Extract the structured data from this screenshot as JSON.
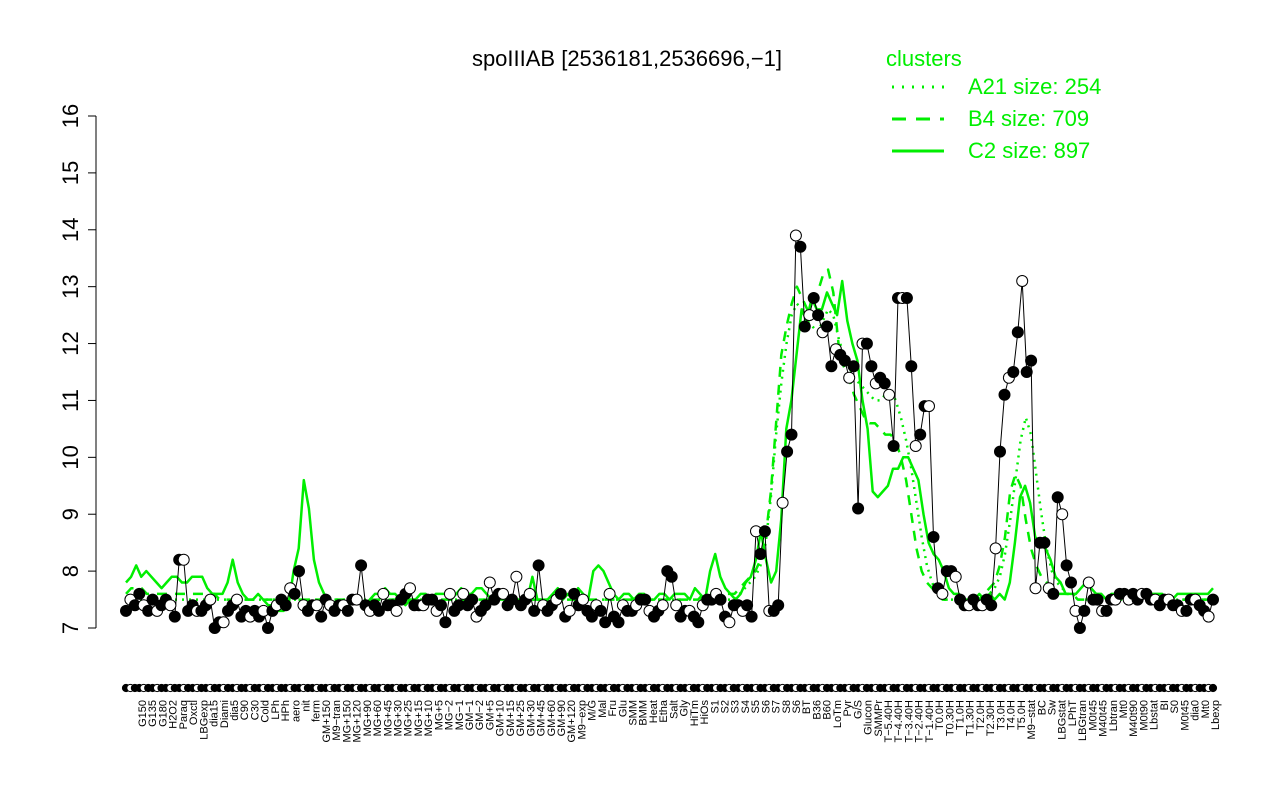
{
  "chart_data": {
    "type": "line",
    "title": "spoIIIAB [2536181,2536696,−1]",
    "xlabel": "",
    "ylabel": "",
    "ylim": [
      7,
      16
    ],
    "yticks": [
      7,
      8,
      9,
      10,
      11,
      12,
      13,
      14,
      15,
      16
    ],
    "grid": false,
    "legend_position": "top-right",
    "legend_title": "clusters",
    "legend": [
      {
        "label": "A21 size: 254",
        "style": "dotted",
        "color": "#00ee00"
      },
      {
        "label": "B4 size: 709",
        "style": "dashed",
        "color": "#00ee00"
      },
      {
        "label": "C2 size: 897",
        "style": "solid",
        "color": "#00ee00"
      }
    ],
    "x_tick_labels_row1": [
      "G150",
      "G135",
      "G180",
      "H2O2",
      "Paraq",
      "Oxctl",
      "LBGexp",
      "dia15",
      "Diami",
      "dia5",
      "C90",
      "C30",
      "Cold",
      "LPh",
      "HPh",
      "aero",
      "nit",
      "ferm",
      "GM+150",
      "M9−tran",
      "MG+150",
      "MG+120",
      "MG+90",
      "MG+60",
      "MG+45",
      "MG+30",
      "MG+25",
      "MG+15",
      "MG+10",
      "MG+5",
      "MG−2",
      "MG−1",
      "GM−1",
      "GM−2",
      "GM+5",
      "GM+10",
      "GM+15",
      "GM+25",
      "GM+30",
      "GM+45",
      "GM+60",
      "GM+90",
      "GM+120",
      "M9−exp",
      "M/G",
      "Mal",
      "Fru",
      "Glu",
      "SMM",
      "BMM",
      "Heat",
      "Etha",
      "Salt",
      "Gly",
      "HiTm",
      "HiOs",
      "S1",
      "S2",
      "S3",
      "S4",
      "S5",
      "S6",
      "S7",
      "S8",
      "S6",
      "BT",
      "B36",
      "B60",
      "LoTm",
      "Pyr",
      "G/S",
      "Glucon",
      "SMMPr",
      "T−5.40H",
      "T−4.40H",
      "T−3.40H",
      "T−2.40H",
      "T−1.40H",
      "T0.0H",
      "T0.30H",
      "T1.0H",
      "T1.30H",
      "T2.0H",
      "T2.30H",
      "T3.0H",
      "T4.0H",
      "T5.0H",
      "M9−stat",
      "BC",
      "Sw",
      "LBGstat",
      "LPhT",
      "LBGtran",
      "M0t45",
      "M40t45",
      "Lbtran",
      "Mt0",
      "M40t90",
      "M0t90",
      "Lbstat",
      "BI",
      "S0",
      "M0t45",
      "dia0",
      "Mt0",
      "Lbexp"
    ],
    "series": [
      {
        "name": "",
        "style": "solid-black-points",
        "values": [
          7.3,
          7.5,
          7.4,
          7.6,
          7.4,
          7.3,
          7.5,
          7.3,
          7.4,
          7.5,
          7.4,
          7.2,
          8.2,
          8.2,
          7.3,
          7.4,
          7.3,
          7.3,
          7.4,
          7.5,
          7.0,
          7.1,
          7.1,
          7.3,
          7.4,
          7.5,
          7.2,
          7.3,
          7.2,
          7.3,
          7.2,
          7.3,
          7.0,
          7.3,
          7.4,
          7.5,
          7.4,
          7.7,
          7.6,
          8.0,
          7.4,
          7.3,
          7.4,
          7.4,
          7.2,
          7.5,
          7.4,
          7.3,
          7.4,
          7.4,
          7.3,
          7.5,
          7.5,
          8.1,
          7.4,
          7.3,
          7.4,
          7.3,
          7.6,
          7.4,
          7.4,
          7.3,
          7.5,
          7.6,
          7.7,
          7.4,
          7.4,
          7.4,
          7.5,
          7.5,
          7.3,
          7.4,
          7.1,
          7.6,
          7.3,
          7.4,
          7.6,
          7.4,
          7.5,
          7.2,
          7.3,
          7.4,
          7.8,
          7.5,
          7.6,
          7.6,
          7.4,
          7.5,
          7.9,
          7.4,
          7.5,
          7.6,
          7.3,
          8.1,
          7.4,
          7.3,
          7.4,
          7.5,
          7.6,
          7.2,
          7.3,
          7.6,
          7.4,
          7.5,
          7.3,
          7.2,
          7.4,
          7.3,
          7.1,
          7.6,
          7.2,
          7.1,
          7.4,
          7.3,
          7.3,
          7.4,
          7.5,
          7.5,
          7.3,
          7.2,
          7.3,
          7.4,
          8.0,
          7.9,
          7.4,
          7.2,
          7.3,
          7.3,
          7.2,
          7.1,
          7.4,
          7.5,
          7.5,
          7.6,
          7.5,
          7.2,
          7.1,
          7.4,
          7.4,
          7.3,
          7.4,
          7.2,
          8.7,
          8.3,
          8.7,
          7.3,
          7.3,
          7.4,
          9.2,
          10.1,
          10.4,
          13.9,
          13.7,
          12.3,
          12.5,
          12.8,
          12.5,
          12.2,
          12.3,
          11.6,
          11.9,
          11.8,
          11.7,
          11.4,
          11.6,
          9.1,
          12.0,
          12.0,
          11.6,
          11.3,
          11.4,
          11.3,
          11.1,
          10.2,
          12.8,
          12.8,
          12.8,
          11.6,
          10.2,
          10.4,
          10.9,
          10.9,
          8.6,
          7.7,
          7.6,
          8.0,
          8.0,
          7.9,
          7.5,
          7.4,
          7.4,
          7.5,
          7.4,
          7.4,
          7.5,
          7.4,
          8.4,
          10.1,
          11.1,
          11.4,
          11.5,
          12.2,
          13.1,
          11.5,
          11.7,
          7.7,
          8.5,
          8.5,
          7.7,
          7.6,
          9.3,
          9.0,
          8.1,
          7.8,
          7.3,
          7.0,
          7.3,
          7.8,
          7.5,
          7.5,
          7.3,
          7.3,
          7.5,
          7.5,
          7.6,
          7.6,
          7.5,
          7.6,
          7.5,
          7.6,
          7.6,
          7.5,
          7.5,
          7.4,
          7.5,
          7.5,
          7.4,
          7.4,
          7.3,
          7.3,
          7.5,
          7.5,
          7.4,
          7.3,
          7.2,
          7.5
        ]
      },
      {
        "name": "",
        "style": "solid-green",
        "values": [
          7.8,
          7.9,
          8.1,
          7.9,
          8.0,
          7.9,
          7.8,
          7.7,
          7.8,
          7.9,
          7.9,
          7.8,
          7.8,
          7.9,
          7.9,
          7.9,
          7.7,
          7.6,
          7.6,
          7.6,
          7.8,
          8.2,
          7.8,
          7.6,
          7.5,
          7.5,
          7.6,
          7.5,
          7.4,
          7.4,
          7.3,
          7.3,
          7.4,
          8.0,
          8.4,
          9.6,
          9.1,
          8.2,
          7.8,
          7.6,
          7.5,
          7.4,
          7.4,
          7.4,
          7.4,
          7.5,
          7.5,
          7.4,
          7.5,
          7.6,
          7.6,
          7.7,
          7.6,
          7.6,
          7.5,
          7.4,
          7.5,
          7.5,
          7.6,
          7.6,
          7.5,
          7.6,
          7.6,
          7.6,
          7.5,
          7.6,
          7.7,
          7.6,
          7.6,
          7.7,
          7.7,
          7.6,
          7.5,
          7.6,
          7.6,
          7.5,
          7.5,
          7.5,
          7.4,
          7.5,
          7.9,
          7.5,
          7.5,
          7.5,
          7.6,
          7.7,
          7.5,
          7.6,
          7.5,
          7.7,
          7.6,
          7.5,
          8.0,
          8.1,
          8.0,
          7.8,
          7.6,
          7.5,
          7.6,
          7.6,
          7.5,
          7.6,
          7.6,
          7.5,
          7.5,
          7.6,
          7.6,
          7.5,
          7.6,
          7.6,
          7.6,
          7.5,
          7.7,
          7.6,
          7.5,
          8.0,
          8.3,
          7.9,
          7.7,
          7.6,
          7.5,
          7.6,
          7.8,
          7.9,
          8.2,
          8.7,
          8.2,
          7.8,
          8.0,
          8.9,
          10.5,
          11.0,
          11.8,
          12.6,
          12.4,
          12.8,
          12.6,
          12.6,
          12.9,
          12.7,
          12.5,
          13.1,
          12.4,
          12.0,
          11.7,
          11.0,
          10.5,
          9.4,
          9.3,
          9.4,
          9.5,
          9.8,
          9.8,
          10.0,
          10.0,
          9.8,
          9.6,
          9.0,
          8.5,
          8.3,
          8.2,
          8.0,
          7.7,
          7.6,
          7.6,
          7.5,
          7.5,
          7.5,
          7.6,
          7.5,
          7.6,
          7.5,
          7.6,
          7.5,
          7.8,
          8.5,
          9.3,
          9.5,
          9.2,
          8.6,
          8.5,
          8.4,
          8.2,
          7.9,
          7.8,
          7.6,
          7.6,
          7.6,
          7.7,
          7.8,
          7.7,
          7.6,
          7.6,
          7.5,
          7.6,
          7.6,
          7.6,
          7.5,
          7.5,
          7.6,
          7.6,
          7.6,
          7.6,
          7.6,
          7.6,
          7.5,
          7.5,
          7.6,
          7.6,
          7.6,
          7.6,
          7.6,
          7.6,
          7.6,
          7.7
        ]
      },
      {
        "name": "",
        "style": "dashed-green",
        "values": [
          7.6,
          7.7,
          7.7,
          7.7,
          7.6,
          7.6,
          7.6,
          7.6,
          7.6,
          7.6,
          7.6,
          7.6,
          7.6,
          7.6,
          7.6,
          7.6,
          7.6,
          7.6,
          7.5,
          7.5,
          7.5,
          7.5,
          7.5,
          7.5,
          7.5,
          7.5,
          7.5,
          7.5,
          7.5,
          7.5,
          7.5,
          7.5,
          7.5,
          7.5,
          7.5,
          7.5,
          7.5,
          7.5,
          7.5,
          7.5,
          7.5,
          7.5,
          7.5,
          7.5,
          7.5,
          7.5,
          7.5,
          7.5,
          7.5,
          7.5,
          7.5,
          7.5,
          7.5,
          7.5,
          7.5,
          7.5,
          7.5,
          7.5,
          7.5,
          7.5,
          7.5,
          7.5,
          7.5,
          7.5,
          7.5,
          7.5,
          7.5,
          7.5,
          7.5,
          7.5,
          7.5,
          7.5,
          7.5,
          7.5,
          7.5,
          7.5,
          7.5,
          7.5,
          7.5,
          7.5,
          7.5,
          7.5,
          7.5,
          7.5,
          7.5,
          7.5,
          7.5,
          7.5,
          7.5,
          7.5,
          7.5,
          7.5,
          7.5,
          7.5,
          7.5,
          7.5,
          7.5,
          7.5,
          7.5,
          7.5,
          7.5,
          7.5,
          7.5,
          7.5,
          7.5,
          7.5,
          7.5,
          7.5,
          7.5,
          7.5,
          7.5,
          7.6,
          7.6,
          7.6,
          7.6,
          7.6,
          7.6,
          7.6,
          7.7,
          7.8,
          7.9,
          8.0,
          8.2,
          8.6,
          9.4,
          10.6,
          11.8,
          12.3,
          12.7,
          13.0,
          12.8,
          12.6,
          12.7,
          12.9,
          13.2,
          13.3,
          12.9,
          12.0,
          11.6,
          11.4,
          11.1,
          10.9,
          10.7,
          10.6,
          10.6,
          10.5,
          10.4,
          10.4,
          10.3,
          10.0,
          9.6,
          9.0,
          8.4,
          8.0,
          7.8,
          7.7,
          7.6,
          7.5,
          7.5,
          7.5,
          7.5,
          7.5,
          7.5,
          7.5,
          7.5,
          7.6,
          7.7,
          7.8,
          8.1,
          8.6,
          9.4,
          9.7,
          9.5,
          8.9,
          8.4,
          8.1,
          7.9,
          7.8,
          7.7,
          7.6,
          7.6,
          7.6,
          7.6,
          7.5,
          7.5,
          7.5,
          7.5,
          7.5,
          7.5,
          7.5,
          7.5,
          7.5,
          7.5,
          7.5,
          7.5,
          7.5,
          7.5,
          7.5,
          7.5,
          7.5,
          7.5,
          7.5,
          7.5,
          7.5,
          7.5,
          7.5,
          7.5,
          7.5,
          7.5,
          7.5
        ]
      },
      {
        "name": "",
        "style": "dotted-green",
        "values": [
          7.5,
          7.5,
          7.5,
          7.5,
          7.5,
          7.5,
          7.5,
          7.5,
          7.5,
          7.5,
          7.5,
          7.5,
          7.5,
          7.5,
          7.5,
          7.5,
          7.5,
          7.5,
          7.5,
          7.5,
          7.5,
          7.5,
          7.5,
          7.5,
          7.5,
          7.5,
          7.5,
          7.5,
          7.5,
          7.5,
          7.5,
          7.5,
          7.5,
          7.5,
          7.5,
          7.5,
          7.5,
          7.5,
          7.5,
          7.5,
          7.5,
          7.5,
          7.5,
          7.5,
          7.5,
          7.5,
          7.5,
          7.5,
          7.5,
          7.5,
          7.5,
          7.5,
          7.5,
          7.5,
          7.5,
          7.5,
          7.5,
          7.5,
          7.5,
          7.5,
          7.5,
          7.5,
          7.5,
          7.5,
          7.5,
          7.5,
          7.5,
          7.5,
          7.5,
          7.5,
          7.5,
          7.5,
          7.5,
          7.5,
          7.5,
          7.5,
          7.5,
          7.5,
          7.5,
          7.5,
          7.5,
          7.5,
          7.5,
          7.5,
          7.5,
          7.5,
          7.5,
          7.5,
          7.5,
          7.5,
          7.5,
          7.5,
          7.5,
          7.5,
          7.5,
          7.5,
          7.5,
          7.5,
          7.5,
          7.5,
          7.5,
          7.5,
          7.5,
          7.5,
          7.5,
          7.5,
          7.5,
          7.5,
          7.5,
          7.5,
          7.5,
          7.5,
          7.5,
          7.5,
          7.5,
          7.5,
          7.5,
          7.5,
          7.6,
          7.7,
          7.8,
          7.9,
          8.1,
          8.5,
          9.3,
          10.4,
          11.3,
          12.0,
          12.5,
          12.7,
          12.6,
          12.4,
          12.3,
          12.2,
          12.4,
          12.6,
          12.5,
          12.1,
          11.8,
          11.6,
          11.4,
          11.3,
          11.2,
          11.1,
          11.0,
          11.0,
          11.1,
          11.2,
          11.0,
          10.7,
          10.3,
          9.8,
          9.2,
          8.6,
          8.1,
          7.8,
          7.6,
          7.5,
          7.5,
          7.5,
          7.5,
          7.5,
          7.5,
          7.5,
          7.5,
          7.5,
          7.6,
          7.7,
          7.9,
          8.3,
          8.9,
          9.6,
          10.3,
          10.7,
          10.4,
          9.7,
          9.0,
          8.4,
          8.0,
          7.8,
          7.7,
          7.6,
          7.6,
          7.5,
          7.5,
          7.5,
          7.5,
          7.5,
          7.5,
          7.5,
          7.5,
          7.5,
          7.5,
          7.5,
          7.5,
          7.5,
          7.5,
          7.5,
          7.5,
          7.5,
          7.5,
          7.5,
          7.5,
          7.5,
          7.5,
          7.5,
          7.5,
          7.5,
          7.5,
          7.5
        ]
      }
    ]
  }
}
